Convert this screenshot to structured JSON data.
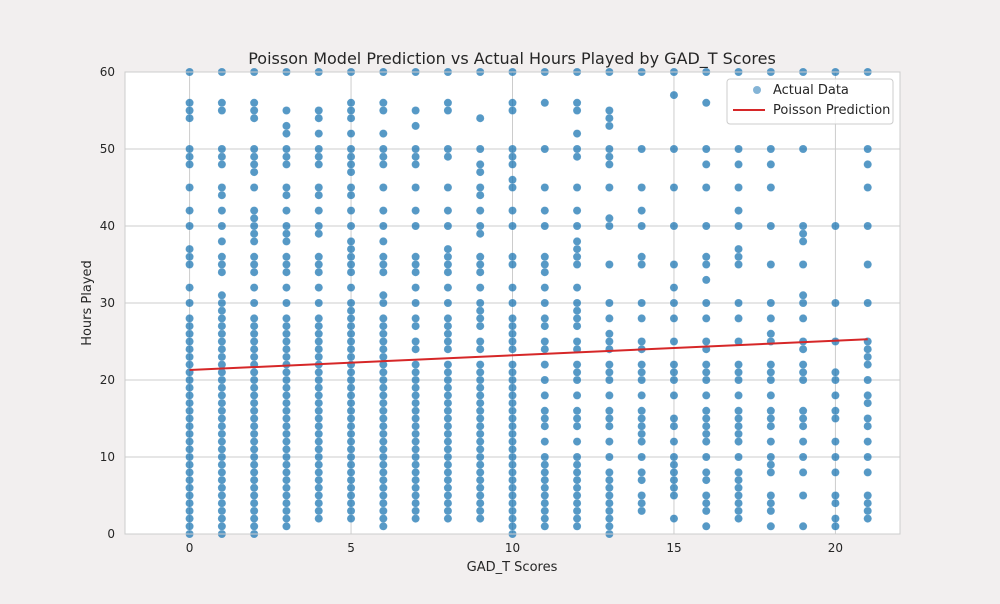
{
  "chart_data": {
    "type": "scatter",
    "title": "Poisson Model Prediction vs Actual Hours Played by GAD_T Scores",
    "xlabel": "GAD_T Scores",
    "ylabel": "Hours Played",
    "xlim": [
      -2,
      22
    ],
    "ylim": [
      0,
      60
    ],
    "xticks": [
      0,
      5,
      10,
      15,
      20
    ],
    "yticks": [
      0,
      10,
      20,
      30,
      40,
      50,
      60
    ],
    "grid": true,
    "legend_position": "top-right",
    "colors": {
      "scatter": "#1f77b4",
      "line": "#d62728",
      "background": "#f2efef",
      "plot_area": "#ffffff",
      "grid": "#cccccc"
    },
    "series": [
      {
        "name": "Actual Data",
        "kind": "scatter",
        "x_values": [
          0,
          1,
          2,
          3,
          4,
          5,
          6,
          7,
          8,
          9,
          10,
          11,
          12,
          13,
          14,
          15,
          16,
          17,
          18,
          19,
          20,
          21
        ],
        "y_by_x": [
          [
            0,
            1,
            2,
            3,
            4,
            5,
            6,
            7,
            8,
            9,
            10,
            11,
            12,
            13,
            14,
            15,
            16,
            17,
            18,
            19,
            20,
            21,
            22,
            23,
            24,
            25,
            26,
            27,
            28,
            30,
            32,
            35,
            36,
            37,
            40,
            42,
            45,
            48,
            49,
            50,
            54,
            55,
            56,
            60
          ],
          [
            0,
            1,
            2,
            3,
            4,
            5,
            6,
            7,
            8,
            9,
            10,
            11,
            12,
            13,
            14,
            15,
            16,
            17,
            18,
            19,
            20,
            21,
            22,
            23,
            24,
            25,
            26,
            27,
            28,
            29,
            30,
            31,
            34,
            35,
            36,
            38,
            40,
            42,
            44,
            45,
            48,
            49,
            50,
            55,
            56,
            60
          ],
          [
            0,
            1,
            2,
            3,
            4,
            5,
            6,
            7,
            8,
            9,
            10,
            11,
            12,
            13,
            14,
            15,
            16,
            17,
            18,
            19,
            20,
            21,
            22,
            23,
            24,
            25,
            26,
            27,
            28,
            30,
            32,
            34,
            35,
            36,
            38,
            39,
            40,
            41,
            42,
            45,
            47,
            48,
            49,
            50,
            54,
            55,
            56,
            60
          ],
          [
            1,
            2,
            3,
            4,
            5,
            6,
            7,
            8,
            9,
            10,
            11,
            12,
            13,
            14,
            15,
            16,
            17,
            18,
            19,
            20,
            21,
            22,
            23,
            24,
            25,
            26,
            27,
            28,
            30,
            32,
            34,
            35,
            36,
            38,
            39,
            40,
            42,
            44,
            45,
            48,
            49,
            50,
            52,
            53,
            55,
            60
          ],
          [
            2,
            3,
            4,
            5,
            6,
            7,
            8,
            9,
            10,
            11,
            12,
            13,
            14,
            15,
            16,
            17,
            18,
            19,
            20,
            21,
            22,
            23,
            24,
            25,
            26,
            27,
            28,
            30,
            32,
            34,
            35,
            36,
            39,
            40,
            42,
            44,
            45,
            48,
            49,
            50,
            52,
            54,
            55,
            60
          ],
          [
            2,
            3,
            4,
            5,
            6,
            7,
            8,
            9,
            10,
            11,
            12,
            13,
            14,
            15,
            16,
            17,
            18,
            19,
            20,
            21,
            22,
            23,
            24,
            25,
            26,
            27,
            28,
            29,
            30,
            32,
            34,
            35,
            36,
            37,
            38,
            40,
            42,
            44,
            45,
            47,
            48,
            49,
            50,
            52,
            54,
            55,
            56,
            60
          ],
          [
            1,
            2,
            3,
            4,
            5,
            6,
            7,
            8,
            9,
            10,
            11,
            12,
            13,
            14,
            15,
            16,
            17,
            18,
            19,
            20,
            21,
            22,
            23,
            24,
            25,
            26,
            27,
            28,
            30,
            31,
            34,
            35,
            36,
            38,
            40,
            42,
            45,
            48,
            49,
            50,
            52,
            55,
            56,
            60
          ],
          [
            2,
            3,
            4,
            5,
            6,
            7,
            8,
            9,
            10,
            11,
            12,
            13,
            14,
            15,
            16,
            17,
            18,
            19,
            20,
            21,
            22,
            24,
            25,
            27,
            28,
            30,
            32,
            34,
            35,
            36,
            40,
            42,
            45,
            48,
            49,
            50,
            53,
            55,
            60
          ],
          [
            2,
            3,
            4,
            5,
            6,
            7,
            8,
            9,
            10,
            11,
            12,
            13,
            14,
            15,
            16,
            17,
            18,
            19,
            20,
            21,
            22,
            24,
            25,
            26,
            27,
            28,
            30,
            32,
            34,
            35,
            36,
            37,
            40,
            42,
            45,
            49,
            50,
            55,
            56,
            60
          ],
          [
            2,
            3,
            4,
            5,
            6,
            7,
            8,
            9,
            10,
            11,
            12,
            13,
            14,
            15,
            16,
            17,
            18,
            19,
            20,
            21,
            22,
            24,
            25,
            27,
            28,
            29,
            30,
            32,
            34,
            35,
            36,
            39,
            40,
            42,
            44,
            45,
            47,
            48,
            50,
            54,
            60
          ],
          [
            0,
            1,
            2,
            3,
            4,
            5,
            6,
            7,
            8,
            9,
            10,
            11,
            12,
            13,
            14,
            15,
            16,
            17,
            18,
            19,
            20,
            21,
            22,
            24,
            25,
            26,
            27,
            28,
            30,
            32,
            35,
            36,
            40,
            42,
            45,
            46,
            48,
            49,
            50,
            55,
            56,
            60
          ],
          [
            1,
            2,
            3,
            4,
            5,
            6,
            7,
            8,
            9,
            10,
            12,
            14,
            15,
            16,
            18,
            20,
            22,
            24,
            25,
            27,
            28,
            30,
            32,
            34,
            35,
            36,
            40,
            42,
            45,
            50,
            56,
            60
          ],
          [
            1,
            2,
            3,
            4,
            5,
            6,
            7,
            8,
            9,
            10,
            12,
            14,
            15,
            16,
            18,
            20,
            21,
            22,
            24,
            25,
            27,
            28,
            29,
            30,
            32,
            35,
            36,
            37,
            38,
            40,
            42,
            45,
            49,
            50,
            52,
            55,
            56,
            60
          ],
          [
            0,
            1,
            2,
            3,
            4,
            5,
            6,
            7,
            8,
            10,
            12,
            14,
            15,
            16,
            18,
            20,
            21,
            22,
            24,
            25,
            26,
            28,
            30,
            35,
            40,
            41,
            45,
            48,
            49,
            50,
            53,
            54,
            55,
            60
          ],
          [
            3,
            4,
            5,
            7,
            8,
            10,
            12,
            13,
            14,
            15,
            16,
            18,
            20,
            21,
            22,
            24,
            25,
            28,
            30,
            35,
            36,
            40,
            42,
            45,
            50,
            60
          ],
          [
            2,
            5,
            6,
            7,
            8,
            9,
            10,
            12,
            14,
            15,
            18,
            20,
            21,
            22,
            25,
            28,
            30,
            32,
            35,
            40,
            45,
            50,
            57,
            60
          ],
          [
            1,
            3,
            4,
            5,
            7,
            8,
            10,
            12,
            13,
            14,
            15,
            16,
            18,
            20,
            21,
            22,
            24,
            25,
            28,
            30,
            33,
            35,
            36,
            40,
            45,
            48,
            50,
            56,
            60
          ],
          [
            2,
            3,
            4,
            5,
            6,
            7,
            8,
            10,
            12,
            13,
            14,
            15,
            16,
            18,
            20,
            21,
            22,
            25,
            28,
            30,
            35,
            36,
            37,
            40,
            42,
            45,
            48,
            50,
            60
          ],
          [
            1,
            3,
            4,
            5,
            8,
            9,
            10,
            12,
            14,
            15,
            16,
            18,
            20,
            21,
            22,
            25,
            26,
            28,
            30,
            35,
            40,
            45,
            48,
            50,
            60
          ],
          [
            1,
            5,
            8,
            10,
            12,
            14,
            15,
            16,
            20,
            21,
            22,
            24,
            25,
            28,
            30,
            31,
            35,
            38,
            39,
            40,
            50,
            60
          ],
          [
            1,
            2,
            4,
            5,
            8,
            10,
            12,
            15,
            16,
            18,
            20,
            21,
            25,
            30,
            40,
            60
          ],
          [
            2,
            3,
            4,
            5,
            8,
            10,
            12,
            14,
            15,
            17,
            18,
            20,
            22,
            23,
            24,
            25,
            30,
            35,
            40,
            45,
            48,
            50,
            60
          ]
        ]
      },
      {
        "name": "Poisson Prediction",
        "kind": "line",
        "x": [
          0,
          21
        ],
        "y": [
          21.3,
          25.3
        ]
      }
    ]
  }
}
